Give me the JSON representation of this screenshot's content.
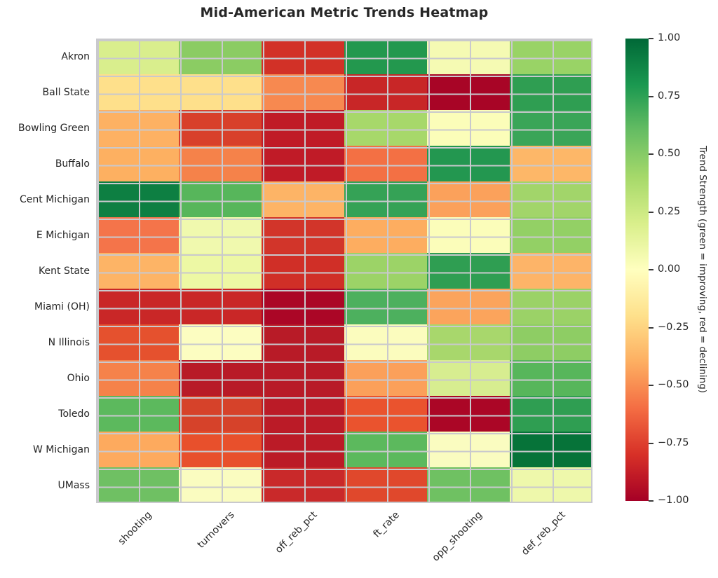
{
  "title": "Mid-American Metric Trends Heatmap",
  "colors": {
    "background": "#ffffff",
    "grid_line": "#c9c9cd",
    "text": "#262626"
  },
  "chart_data": {
    "type": "heatmap",
    "title": "Mid-American Metric Trends Heatmap",
    "rows": [
      "Akron",
      "Ball State",
      "Bowling Green",
      "Buffalo",
      "Cent Michigan",
      "E Michigan",
      "Kent State",
      "Miami (OH)",
      "N Illinois",
      "Ohio",
      "Toledo",
      "W Michigan",
      "UMass"
    ],
    "columns": [
      "shooting",
      "turnovers",
      "off_reb_pct",
      "ft_rate",
      "opp_shooting",
      "def_reb_pct"
    ],
    "vmin": -1.0,
    "vmax": 1.0,
    "colormap": "RdYlGn",
    "grid": true,
    "values": [
      [
        0.2,
        0.45,
        -0.8,
        0.78,
        0.05,
        0.35
      ],
      [
        -0.2,
        -0.2,
        -0.5,
        -0.85,
        -0.97,
        0.74
      ],
      [
        -0.38,
        -0.75,
        -0.88,
        0.4,
        0.02,
        0.7
      ],
      [
        -0.38,
        -0.55,
        -0.88,
        -0.58,
        0.78,
        -0.35
      ],
      [
        0.88,
        0.55,
        -0.37,
        0.72,
        -0.45,
        0.4
      ],
      [
        -0.58,
        0.07,
        -0.78,
        -0.4,
        0.02,
        0.42
      ],
      [
        -0.37,
        0.1,
        -0.8,
        0.38,
        0.74,
        -0.37
      ],
      [
        -0.84,
        -0.84,
        -0.96,
        0.58,
        -0.44,
        0.38
      ],
      [
        -0.68,
        0.0,
        -0.9,
        0.01,
        0.38,
        0.44
      ],
      [
        -0.55,
        -0.9,
        -0.9,
        -0.45,
        0.2,
        0.55
      ],
      [
        0.52,
        -0.76,
        -0.89,
        -0.66,
        -0.96,
        0.74
      ],
      [
        -0.42,
        -0.68,
        -0.89,
        0.52,
        0.0,
        0.97
      ],
      [
        0.48,
        0.0,
        -0.83,
        -0.72,
        0.5,
        0.08
      ]
    ],
    "cell_colors": [
      [
        "#d9ee8d",
        "#8bcc63",
        "#d23127",
        "#23984e",
        "#f5fab3",
        "#99d366"
      ],
      [
        "#fee08b",
        "#fee08b",
        "#f78950",
        "#c82627",
        "#a80526",
        "#2f9e52"
      ],
      [
        "#fdb163",
        "#d8402b",
        "#c01b27",
        "#a7d86a",
        "#fbfdb9",
        "#3aa558"
      ],
      [
        "#fdb061",
        "#f5824a",
        "#c01b27",
        "#f37044",
        "#239750",
        "#fdb768"
      ],
      [
        "#0d7f42",
        "#57b65b",
        "#fdb466",
        "#35a256",
        "#fba15b",
        "#a2d56a"
      ],
      [
        "#f4744a",
        "#f0f9ae",
        "#d2352a",
        "#fdad60",
        "#fbfdba",
        "#93d065"
      ],
      [
        "#fdb466",
        "#edf8a4",
        "#d02f27",
        "#9cd367",
        "#2f9e52",
        "#fdb468"
      ],
      [
        "#c92727",
        "#c92727",
        "#ab0626",
        "#4db05e",
        "#fba45c",
        "#9bd267"
      ],
      [
        "#e5512e",
        "#fcfdc1",
        "#b81b27",
        "#fbfcbe",
        "#a8d76c",
        "#8ecd64"
      ],
      [
        "#f5824a",
        "#b81b27",
        "#b81b27",
        "#fba05a",
        "#d7ed90",
        "#57b65b"
      ],
      [
        "#5cb95d",
        "#d6422a",
        "#bb1b27",
        "#ea532e",
        "#ab0626",
        "#2f9e52"
      ],
      [
        "#fdaa5e",
        "#e8502c",
        "#bb1b27",
        "#5cb95d",
        "#fafcc0",
        "#067339"
      ],
      [
        "#6fc063",
        "#fafcc0",
        "#c9292a",
        "#e0482c",
        "#6fc162",
        "#eef8ab"
      ]
    ],
    "colorbar": {
      "ticks": [
        "1.00",
        "0.75",
        "0.50",
        "0.25",
        "0.00",
        "−0.25",
        "−0.50",
        "−0.75",
        "−1.00"
      ],
      "label": "Trend Strength (green = improving, red = declining)",
      "gradient_stops_top_to_bottom": [
        "#006837",
        "#1a9850",
        "#66bd63",
        "#a6d96a",
        "#d9ef8b",
        "#ffffbf",
        "#fee08b",
        "#fdae61",
        "#f46d43",
        "#d73027",
        "#a50026"
      ]
    }
  }
}
